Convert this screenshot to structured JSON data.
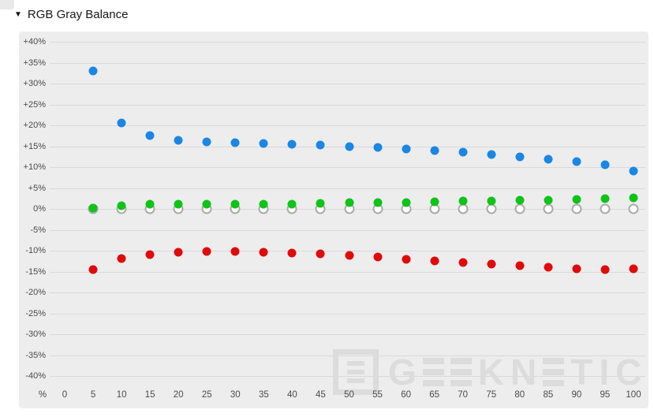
{
  "header": {
    "collapse_icon": "▼",
    "title": "RGB Gray Balance"
  },
  "watermark": {
    "brand": "GEEKNETIC"
  },
  "colors": {
    "panel_background": "#ededee",
    "gridline": "#d9d9da",
    "blue": "#1b86e3",
    "green": "#0fc318",
    "red": "#e10a0a",
    "white_fill": "#fdfdfd",
    "white_border": "#ababab",
    "watermark": "#dcdcdd"
  },
  "chart_data": {
    "type": "scatter",
    "title": "RGB Gray Balance",
    "xlabel": "%",
    "ylabel": "",
    "ylim": [
      -40,
      40
    ],
    "grid": true,
    "legend": false,
    "x_corner_label": "%",
    "x_ticks": [
      {
        "v": 0,
        "label": "0"
      },
      {
        "v": 5,
        "label": "5"
      },
      {
        "v": 10,
        "label": "10"
      },
      {
        "v": 15,
        "label": "15"
      },
      {
        "v": 20,
        "label": "20"
      },
      {
        "v": 25,
        "label": "25"
      },
      {
        "v": 30,
        "label": "30"
      },
      {
        "v": 35,
        "label": "35"
      },
      {
        "v": 40,
        "label": "40"
      },
      {
        "v": 45,
        "label": "45"
      },
      {
        "v": 50,
        "label": "50"
      },
      {
        "v": 55,
        "label": "55"
      },
      {
        "v": 60,
        "label": "60"
      },
      {
        "v": 65,
        "label": "65"
      },
      {
        "v": 70,
        "label": "70"
      },
      {
        "v": 75,
        "label": "75"
      },
      {
        "v": 80,
        "label": "80"
      },
      {
        "v": 85,
        "label": "85"
      },
      {
        "v": 90,
        "label": "90"
      },
      {
        "v": 95,
        "label": "95"
      },
      {
        "v": 100,
        "label": "100"
      }
    ],
    "y_ticks": [
      {
        "v": 40,
        "label": "+40%"
      },
      {
        "v": 35,
        "label": "+35%"
      },
      {
        "v": 30,
        "label": "+30%"
      },
      {
        "v": 25,
        "label": "+25%"
      },
      {
        "v": 20,
        "label": "+20%"
      },
      {
        "v": 15,
        "label": "+15%"
      },
      {
        "v": 10,
        "label": "+10%"
      },
      {
        "v": 5,
        "label": "+5%"
      },
      {
        "v": 0,
        "label": "0%"
      },
      {
        "v": -5,
        "label": "-5%"
      },
      {
        "v": -10,
        "label": "-10%"
      },
      {
        "v": -15,
        "label": "-15%"
      },
      {
        "v": -20,
        "label": "-20%"
      },
      {
        "v": -25,
        "label": "-25%"
      },
      {
        "v": -30,
        "label": "-30%"
      },
      {
        "v": -35,
        "label": "-35%"
      },
      {
        "v": -40,
        "label": "-40%"
      }
    ],
    "x": [
      5,
      10,
      15,
      20,
      25,
      30,
      35,
      40,
      45,
      50,
      55,
      60,
      65,
      70,
      75,
      80,
      85,
      90,
      95,
      100
    ],
    "series": [
      {
        "name": "white",
        "color": "#fdfdfd",
        "border": "#ababab",
        "values": [
          0,
          0,
          0,
          0,
          0,
          0,
          0,
          0,
          0,
          0,
          0,
          0,
          0,
          0,
          0,
          0,
          0,
          0,
          0,
          0
        ]
      },
      {
        "name": "green",
        "color": "#0fc318",
        "values": [
          0.1,
          0.8,
          1.2,
          1.1,
          1.1,
          1.2,
          1.1,
          1.2,
          1.4,
          1.5,
          1.5,
          1.6,
          1.7,
          1.8,
          1.9,
          2.0,
          2.1,
          2.2,
          2.4,
          2.6
        ]
      },
      {
        "name": "red",
        "color": "#e10a0a",
        "values": [
          -14.5,
          -11.9,
          -11.0,
          -10.4,
          -10.1,
          -10.2,
          -10.4,
          -10.6,
          -10.8,
          -11.1,
          -11.5,
          -12.1,
          -12.4,
          -12.9,
          -13.2,
          -13.6,
          -14.0,
          -14.3,
          -14.5,
          -14.4
        ]
      },
      {
        "name": "blue",
        "color": "#1b86e3",
        "values": [
          33,
          20.5,
          17.5,
          16.4,
          16.0,
          15.8,
          15.6,
          15.4,
          15.2,
          15.0,
          14.8,
          14.3,
          13.9,
          13.5,
          13.1,
          12.5,
          11.9,
          11.4,
          10.5,
          9.0
        ]
      }
    ]
  }
}
